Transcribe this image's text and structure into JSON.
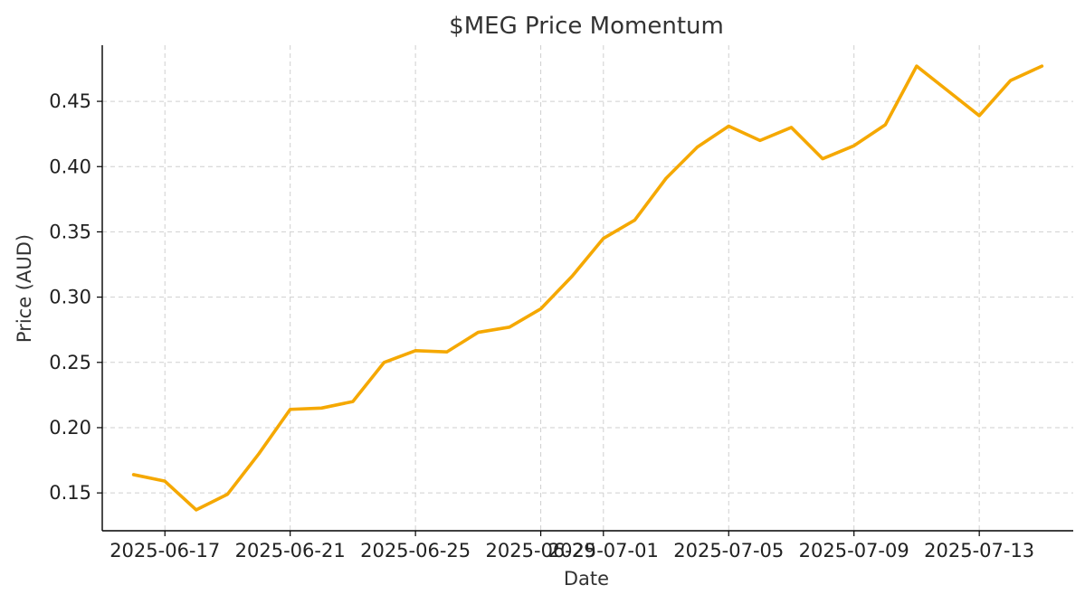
{
  "chart_data": {
    "type": "line",
    "title": "$MEG Price Momentum",
    "xlabel": "Date",
    "ylabel": "Price (AUD)",
    "x": [
      "2025-06-16",
      "2025-06-17",
      "2025-06-18",
      "2025-06-19",
      "2025-06-20",
      "2025-06-21",
      "2025-06-22",
      "2025-06-23",
      "2025-06-24",
      "2025-06-25",
      "2025-06-26",
      "2025-06-27",
      "2025-06-28",
      "2025-06-29",
      "2025-06-30",
      "2025-07-01",
      "2025-07-02",
      "2025-07-03",
      "2025-07-04",
      "2025-07-05",
      "2025-07-06",
      "2025-07-07",
      "2025-07-08",
      "2025-07-09",
      "2025-07-10",
      "2025-07-11",
      "2025-07-12",
      "2025-07-13",
      "2025-07-14",
      "2025-07-15"
    ],
    "series": [
      {
        "values": [
          0.164,
          0.159,
          0.137,
          0.149,
          0.18,
          0.214,
          0.215,
          0.22,
          0.25,
          0.259,
          0.258,
          0.273,
          0.277,
          0.291,
          0.316,
          0.345,
          0.359,
          0.391,
          0.415,
          0.431,
          0.42,
          0.43,
          0.406,
          0.416,
          0.432,
          0.477,
          0.458,
          0.439,
          0.466,
          0.477
        ],
        "color": "#f5a800"
      }
    ],
    "xticks": [
      "2025-06-17",
      "2025-06-21",
      "2025-06-25",
      "2025-06-29",
      "2025-07-01",
      "2025-07-05",
      "2025-07-09",
      "2025-07-13"
    ],
    "xlim": [
      "2025-06-15",
      "2025-07-16"
    ],
    "yticks": [
      0.15,
      0.2,
      0.25,
      0.3,
      0.35,
      0.4,
      0.45
    ],
    "ylim": [
      0.121,
      0.493
    ],
    "grid": true,
    "legend": "none"
  }
}
